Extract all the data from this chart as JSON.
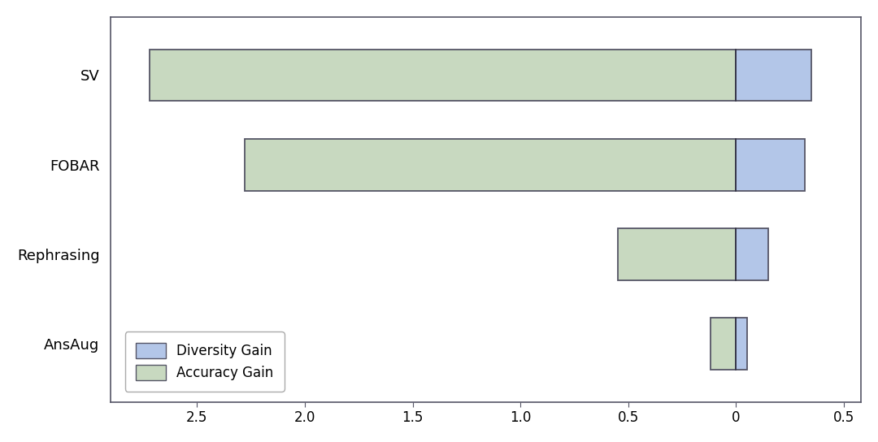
{
  "categories": [
    "SV",
    "FOBAR",
    "Rephrasing",
    "AnsAug"
  ],
  "accuracy_gain": [
    -2.72,
    -2.28,
    -0.55,
    -0.12
  ],
  "diversity_gain": [
    0.35,
    0.32,
    0.15,
    0.05
  ],
  "accuracy_color": "#c8d9c0",
  "diversity_color": "#b3c6e8",
  "bar_edgecolor": "#555566",
  "bar_height": 0.58,
  "xlim": [
    -2.9,
    0.58
  ],
  "xticks": [
    -2.5,
    -2.0,
    -1.5,
    -1.0,
    -0.5,
    0.0,
    0.5
  ],
  "xticklabels": [
    "2.5",
    "2.0",
    "1.5",
    "1.0",
    "0.5",
    "0",
    "0.5"
  ],
  "background_color": "#ffffff",
  "legend_labels": [
    "Diversity Gain",
    "Accuracy Gain"
  ],
  "legend_colors": [
    "#b3c6e8",
    "#c8d9c0"
  ],
  "spine_color": "#555566",
  "divider_color": "#333344"
}
